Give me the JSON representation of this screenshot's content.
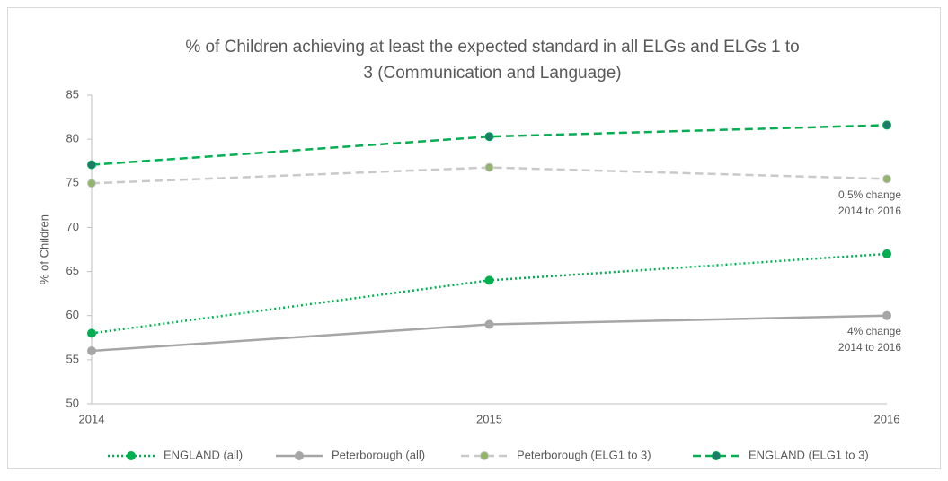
{
  "chart_data": {
    "type": "line",
    "title": [
      "% of Children achieving at least the expected standard in all ELGs and ELGs 1 to",
      "3 (Communication and Language)"
    ],
    "y_label": "% of Children",
    "categories": [
      "2014",
      "2015",
      "2016"
    ],
    "ylim": [
      50,
      85
    ],
    "yticks": [
      50,
      55,
      60,
      65,
      70,
      75,
      80,
      85
    ],
    "grid": false,
    "legend": "bottom",
    "series": [
      {
        "name": "ENGLAND (all)",
        "color": "#00b050",
        "marker_color": "#00b050",
        "style": "dotted",
        "values": [
          58,
          64,
          67
        ]
      },
      {
        "name": "Peterborough (all)",
        "color": "#a6a6a6",
        "marker_color": "#a6a6a6",
        "style": "solid",
        "values": [
          56,
          59,
          60
        ]
      },
      {
        "name": "Peterborough (ELG1 to 3)",
        "color": "#c9c9c9",
        "marker_color": "#92b46c",
        "style": "dashed",
        "values": [
          75,
          76.8,
          75.5
        ]
      },
      {
        "name": "ENGLAND (ELG1 to 3)",
        "color": "#00b050",
        "marker_color": "#1f7a6a",
        "style": "dashed",
        "values": [
          77.1,
          80.3,
          81.6
        ]
      }
    ],
    "annotations": [
      {
        "lines": [
          "0.5% change",
          "2014 to 2016"
        ]
      },
      {
        "lines": [
          "4% change",
          "2014 to 2016"
        ]
      }
    ]
  }
}
